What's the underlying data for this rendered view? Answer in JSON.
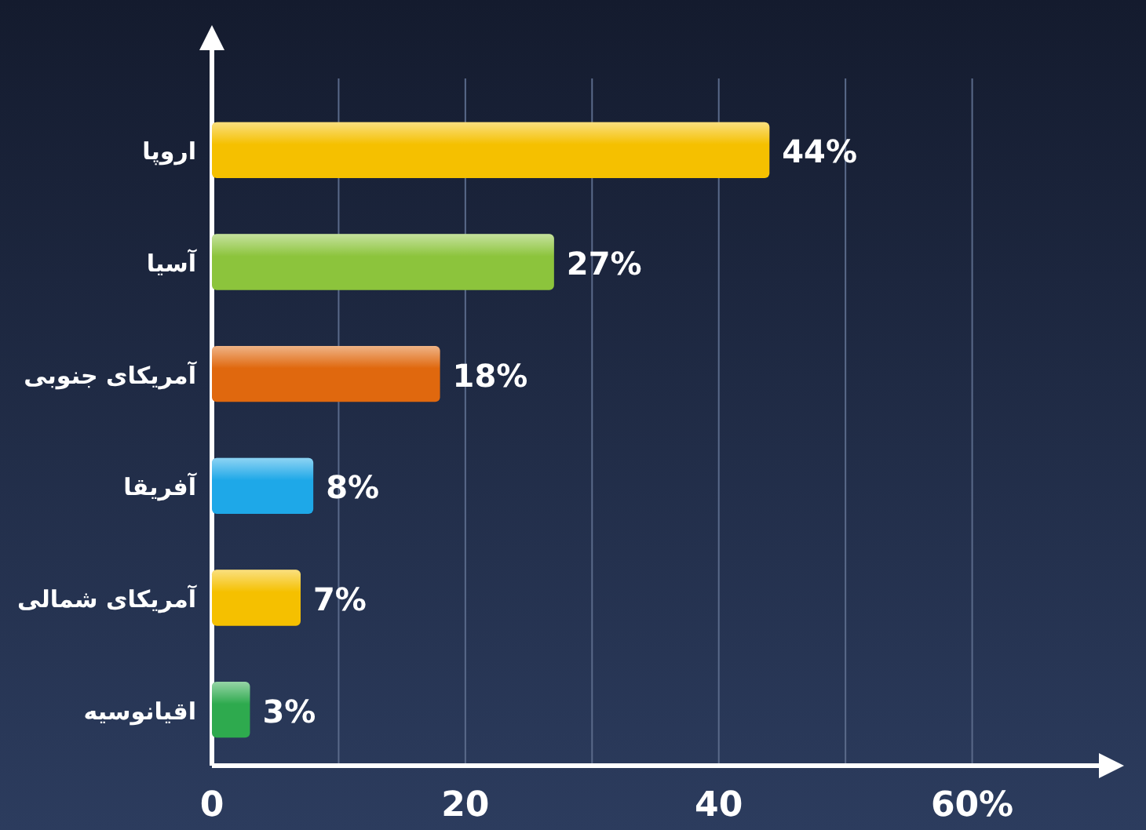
{
  "chart_data": {
    "type": "bar",
    "orientation": "horizontal",
    "categories": [
      "اروپا",
      "آسیا",
      "آمریکای جنوبی",
      "آفریقا",
      "آمریکای شمالی",
      "اقیانوسیه"
    ],
    "values": [
      44,
      27,
      18,
      8,
      7,
      3
    ],
    "colors": [
      "#f5c000",
      "#8cc43c",
      "#e0680e",
      "#1ea8e8",
      "#f5c000",
      "#2eaa4e"
    ],
    "value_labels": [
      "44%",
      "27%",
      "18%",
      "8%",
      "7%",
      "3%"
    ],
    "xlim": [
      0,
      70
    ],
    "xticks": [
      0,
      {
        "value": 10,
        "label": null
      },
      20,
      {
        "value": 30,
        "label": null
      },
      40,
      {
        "value": 50,
        "label": null
      },
      {
        "value": 60,
        "label": "60%"
      }
    ],
    "grid": "x"
  }
}
